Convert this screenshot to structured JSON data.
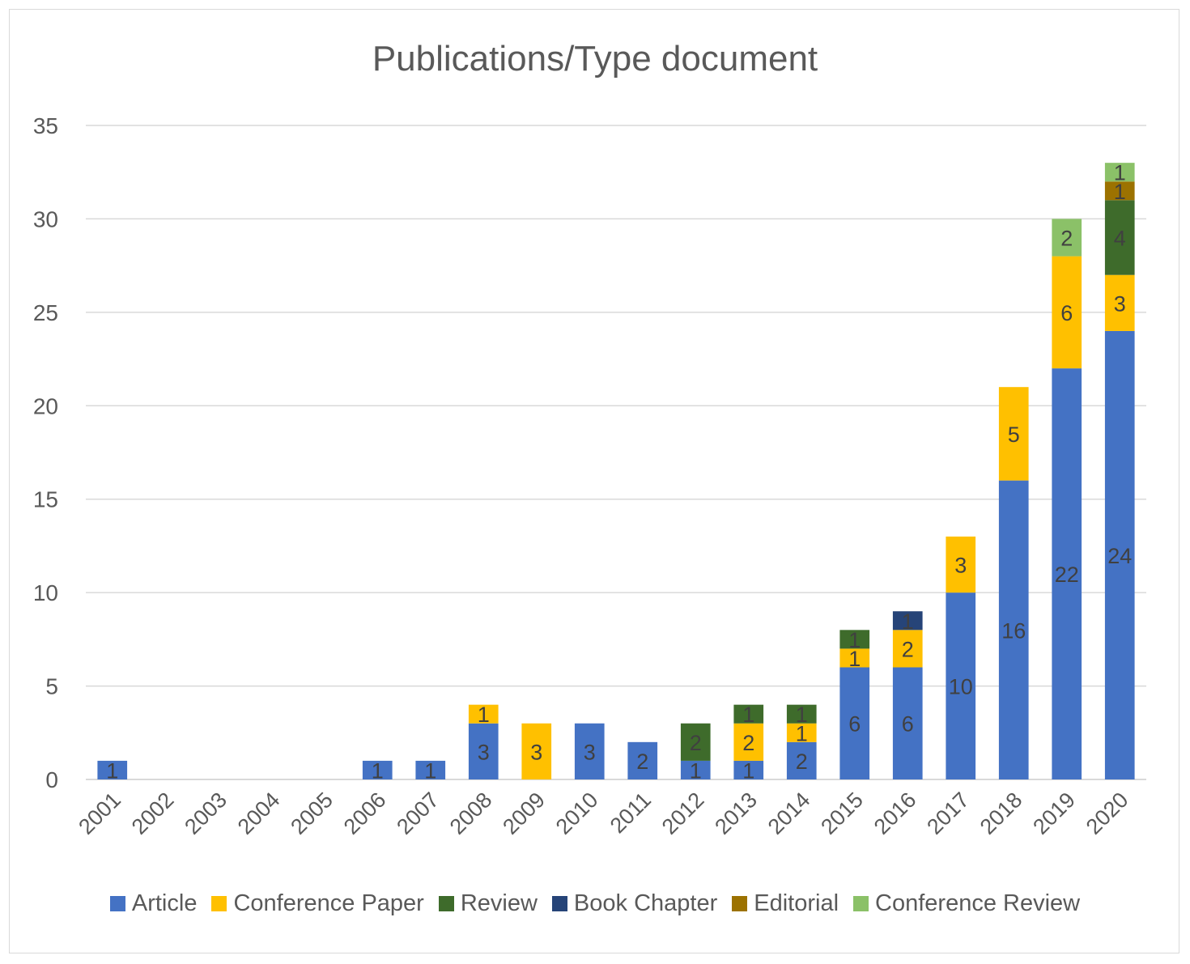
{
  "chart_data": {
    "type": "bar",
    "stacked": true,
    "title": "Publications/Type document",
    "xlabel": "",
    "ylabel": "",
    "ylim": [
      0,
      35
    ],
    "yticks": [
      0,
      5,
      10,
      15,
      20,
      25,
      30,
      35
    ],
    "grid": true,
    "legend_position": "bottom",
    "categories": [
      "2001",
      "2002",
      "2003",
      "2004",
      "2005",
      "2006",
      "2007",
      "2008",
      "2009",
      "2010",
      "2011",
      "2012",
      "2013",
      "2014",
      "2015",
      "2016",
      "2017",
      "2018",
      "2019",
      "2020"
    ],
    "series": [
      {
        "name": "Article",
        "color": "#4472c4",
        "values": [
          1,
          0,
          0,
          0,
          0,
          1,
          1,
          3,
          0,
          3,
          2,
          1,
          1,
          2,
          6,
          6,
          10,
          16,
          22,
          24
        ]
      },
      {
        "name": "Conference Paper",
        "color": "#ffc000",
        "values": [
          0,
          0,
          0,
          0,
          0,
          0,
          0,
          1,
          3,
          0,
          0,
          0,
          2,
          1,
          1,
          2,
          3,
          5,
          6,
          3
        ]
      },
      {
        "name": "Review",
        "color": "#3e6b2b",
        "values": [
          0,
          0,
          0,
          0,
          0,
          0,
          0,
          0,
          0,
          0,
          0,
          2,
          1,
          1,
          1,
          0,
          0,
          0,
          0,
          4
        ]
      },
      {
        "name": "Book Chapter",
        "color": "#264478",
        "values": [
          0,
          0,
          0,
          0,
          0,
          0,
          0,
          0,
          0,
          0,
          0,
          0,
          0,
          0,
          0,
          1,
          0,
          0,
          0,
          0
        ]
      },
      {
        "name": "Editorial",
        "color": "#9c7200",
        "values": [
          0,
          0,
          0,
          0,
          0,
          0,
          0,
          0,
          0,
          0,
          0,
          0,
          0,
          0,
          0,
          0,
          0,
          0,
          0,
          1
        ]
      },
      {
        "name": "Conference Review",
        "color": "#8bc168",
        "values": [
          0,
          0,
          0,
          0,
          0,
          0,
          0,
          0,
          0,
          0,
          0,
          0,
          0,
          0,
          0,
          0,
          0,
          0,
          2,
          1
        ]
      }
    ]
  }
}
